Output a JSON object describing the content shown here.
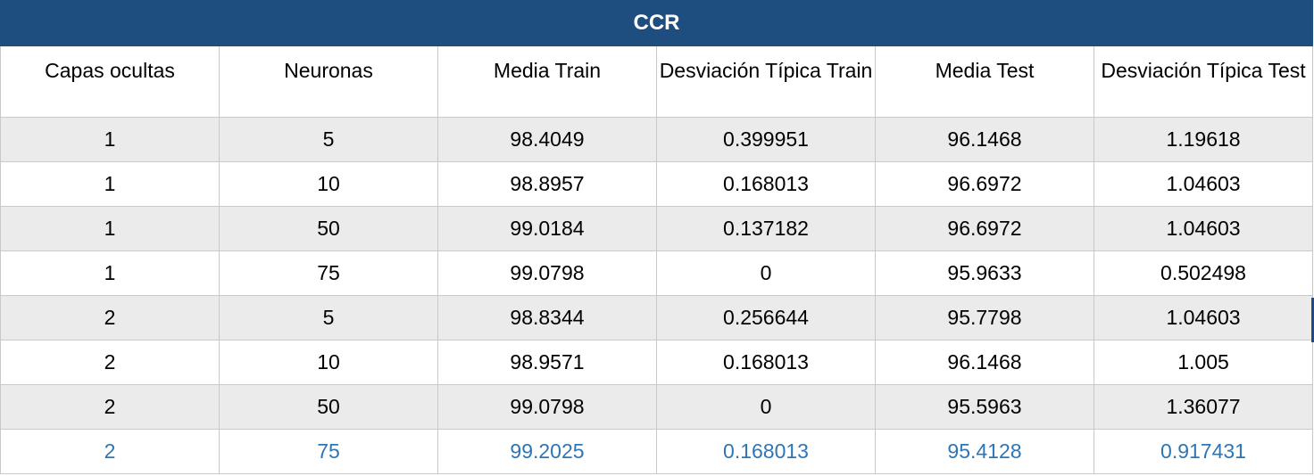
{
  "table": {
    "title": "CCR",
    "headers": [
      "Capas ocultas",
      "Neuronas",
      "Media Train",
      "Desviación Típica Train",
      "Media Test",
      "Desviación Típica Test"
    ],
    "rows": [
      [
        "1",
        "5",
        "98.4049",
        "0.399951",
        "96.1468",
        "1.19618"
      ],
      [
        "1",
        "10",
        "98.8957",
        "0.168013",
        "96.6972",
        "1.04603"
      ],
      [
        "1",
        "50",
        "99.0184",
        "0.137182",
        "96.6972",
        "1.04603"
      ],
      [
        "1",
        "75",
        "99.0798",
        "0",
        "95.9633",
        "0.502498"
      ],
      [
        "2",
        "5",
        "98.8344",
        "0.256644",
        "95.7798",
        "1.04603"
      ],
      [
        "2",
        "10",
        "98.9571",
        "0.168013",
        "96.1468",
        "1.005"
      ],
      [
        "2",
        "50",
        "99.0798",
        "0",
        "95.5963",
        "1.36077"
      ],
      [
        "2",
        "75",
        "99.2025",
        "0.168013",
        "95.4128",
        "0.917431"
      ]
    ],
    "colors": {
      "title_bg": "#1e4e80",
      "alt_row_bg": "#ebebeb",
      "highlight_text": "#2e75b6"
    }
  }
}
